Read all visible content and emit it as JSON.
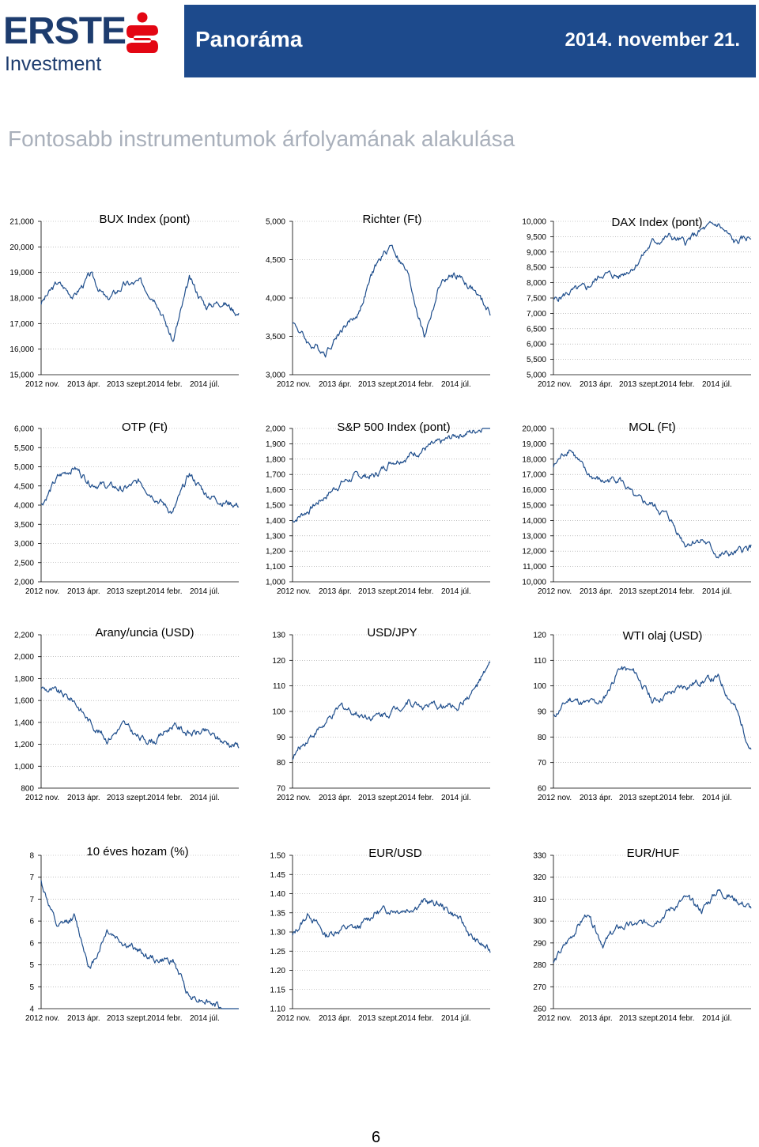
{
  "header": {
    "logo_erste": "ERSTE",
    "logo_investment": "Investment",
    "title": "Panoráma",
    "date": "2014. november 21."
  },
  "section_title": "Fontosabb instrumentumok árfolyamának alakulása",
  "page_number": "6",
  "colors": {
    "line": "#1f4e8c",
    "banner": "#1d4a8c",
    "brand": "#1d3c6e",
    "logo_red": "#e30613",
    "title_gray": "#a9b0bb"
  },
  "x_tick_labels": [
    "2012 nov.",
    "2013 ápr.",
    "2013 szept.",
    "2014 febr.",
    "2014 júl."
  ],
  "chart_data": [
    {
      "id": "bux",
      "type": "line",
      "title": "BUX Index (pont)",
      "yticks": [
        "21,000",
        "20,000",
        "19,000",
        "18,000",
        "17,000",
        "16,000",
        "15,000"
      ],
      "ylim": [
        15000,
        21000
      ],
      "x": [
        "2012-11",
        "2013-01",
        "2013-03",
        "2013-05",
        "2013-07",
        "2013-09",
        "2013-11",
        "2014-01",
        "2014-03",
        "2014-05",
        "2014-07",
        "2014-09",
        "2014-11"
      ],
      "values": [
        17800,
        18600,
        18100,
        18900,
        17900,
        18500,
        18600,
        18000,
        16300,
        18700,
        17700,
        17900,
        17400
      ]
    },
    {
      "id": "richter",
      "type": "line",
      "title": "Richter (Ft)",
      "yticks": [
        "5,000",
        "4,500",
        "4,000",
        "3,500",
        "3,000"
      ],
      "ylim": [
        3000,
        5000
      ],
      "x": [
        "2012-11",
        "2013-01",
        "2013-03",
        "2013-05",
        "2013-07",
        "2013-09",
        "2013-11",
        "2014-01",
        "2014-03",
        "2014-05",
        "2014-07",
        "2014-09",
        "2014-11"
      ],
      "values": [
        3700,
        3400,
        3300,
        3600,
        3800,
        4400,
        4700,
        4300,
        3500,
        4200,
        4300,
        4100,
        3800
      ]
    },
    {
      "id": "dax",
      "type": "line",
      "title": "DAX Index (pont)",
      "yticks": [
        "10,000",
        "9,500",
        "9,000",
        "8,500",
        "8,000",
        "7,500",
        "7,000",
        "6,500",
        "6,000",
        "5,500",
        "5,000"
      ],
      "ylim": [
        5000,
        10000
      ],
      "x": [
        "2012-11",
        "2013-01",
        "2013-03",
        "2013-05",
        "2013-07",
        "2013-09",
        "2013-11",
        "2014-01",
        "2014-03",
        "2014-05",
        "2014-07",
        "2014-09",
        "2014-11"
      ],
      "values": [
        7400,
        7700,
        7800,
        8300,
        8200,
        8600,
        9300,
        9500,
        9300,
        9700,
        9900,
        9300,
        9500
      ]
    },
    {
      "id": "otp",
      "type": "line",
      "title": "OTP (Ft)",
      "yticks": [
        "6,000",
        "5,500",
        "5,000",
        "4,500",
        "4,000",
        "3,500",
        "3,000",
        "2,500",
        "2,000"
      ],
      "ylim": [
        2000,
        6000
      ],
      "x": [
        "2012-11",
        "2013-01",
        "2013-03",
        "2013-05",
        "2013-07",
        "2013-09",
        "2013-11",
        "2014-01",
        "2014-03",
        "2014-05",
        "2014-07",
        "2014-09",
        "2014-11"
      ],
      "values": [
        4000,
        4700,
        5000,
        4600,
        4500,
        4400,
        4600,
        4200,
        3800,
        4800,
        4300,
        4100,
        4000
      ]
    },
    {
      "id": "sp500",
      "type": "line",
      "title": "S&P 500 Index (pont)",
      "yticks": [
        "2,000",
        "1,900",
        "1,800",
        "1,700",
        "1,600",
        "1,500",
        "1,400",
        "1,300",
        "1,200",
        "1,100",
        "1,000"
      ],
      "ylim": [
        1000,
        2000
      ],
      "x": [
        "2012-11",
        "2013-01",
        "2013-03",
        "2013-05",
        "2013-07",
        "2013-09",
        "2013-11",
        "2014-01",
        "2014-03",
        "2014-05",
        "2014-07",
        "2014-09",
        "2014-11"
      ],
      "values": [
        1400,
        1470,
        1560,
        1650,
        1690,
        1690,
        1790,
        1820,
        1870,
        1900,
        1960,
        1980,
        2050
      ]
    },
    {
      "id": "mol",
      "type": "line",
      "title": "MOL (Ft)",
      "yticks": [
        "20,000",
        "19,000",
        "18,000",
        "17,000",
        "16,000",
        "15,000",
        "14,000",
        "13,000",
        "12,000",
        "11,000",
        "10,000"
      ],
      "ylim": [
        10000,
        20000
      ],
      "x": [
        "2012-11",
        "2013-01",
        "2013-03",
        "2013-05",
        "2013-07",
        "2013-09",
        "2013-11",
        "2014-01",
        "2014-03",
        "2014-05",
        "2014-07",
        "2014-09",
        "2014-11"
      ],
      "values": [
        17500,
        18800,
        17000,
        16500,
        16800,
        15300,
        15000,
        14200,
        12500,
        12800,
        11700,
        11800,
        12300
      ]
    },
    {
      "id": "gold",
      "type": "line",
      "title": "Arany/uncia (USD)",
      "yticks": [
        "2,200",
        "2,000",
        "1,800",
        "1,600",
        "1,400",
        "1,200",
        "1,000",
        "800"
      ],
      "ylim": [
        800,
        2200
      ],
      "x": [
        "2012-11",
        "2013-01",
        "2013-03",
        "2013-05",
        "2013-07",
        "2013-09",
        "2013-11",
        "2014-01",
        "2014-03",
        "2014-05",
        "2014-07",
        "2014-09",
        "2014-11"
      ],
      "values": [
        1720,
        1670,
        1600,
        1400,
        1250,
        1380,
        1250,
        1240,
        1380,
        1300,
        1310,
        1230,
        1190
      ]
    },
    {
      "id": "usdjpy",
      "type": "line",
      "title": "USD/JPY",
      "yticks": [
        "130",
        "120",
        "110",
        "100",
        "90",
        "80",
        "70"
      ],
      "ylim": [
        70,
        130
      ],
      "x": [
        "2012-11",
        "2013-01",
        "2013-03",
        "2013-05",
        "2013-07",
        "2013-09",
        "2013-11",
        "2014-01",
        "2014-03",
        "2014-05",
        "2014-07",
        "2014-09",
        "2014-11"
      ],
      "values": [
        82,
        90,
        95,
        102,
        99,
        98,
        100,
        104,
        102,
        102,
        102,
        108,
        118
      ]
    },
    {
      "id": "wti",
      "type": "line",
      "title": "WTI olaj (USD)",
      "yticks": [
        "120",
        "110",
        "100",
        "90",
        "80",
        "70",
        "60"
      ],
      "ylim": [
        60,
        120
      ],
      "x": [
        "2012-11",
        "2013-01",
        "2013-03",
        "2013-05",
        "2013-07",
        "2013-09",
        "2013-11",
        "2014-01",
        "2014-03",
        "2014-05",
        "2014-07",
        "2014-09",
        "2014-11"
      ],
      "values": [
        88,
        95,
        93,
        94,
        107,
        105,
        94,
        97,
        100,
        102,
        103,
        92,
        75
      ]
    },
    {
      "id": "bond10y",
      "type": "line",
      "title": "10 éves hozam (%)",
      "yticks": [
        "8",
        "7",
        "7",
        "6",
        "6",
        "5",
        "5",
        "4"
      ],
      "ylim": [
        4.5,
        8
      ],
      "x": [
        "2012-11",
        "2013-01",
        "2013-03",
        "2013-05",
        "2013-07",
        "2013-09",
        "2013-11",
        "2014-01",
        "2014-03",
        "2014-05",
        "2014-07",
        "2014-09",
        "2014-11"
      ],
      "values": [
        7.4,
        6.3,
        6.6,
        5.4,
        6.3,
        6.0,
        5.8,
        5.6,
        5.6,
        4.8,
        4.7,
        4.5,
        4.1
      ]
    },
    {
      "id": "eurusd",
      "type": "line",
      "title": "EUR/USD",
      "yticks": [
        "1.50",
        "1.45",
        "1.40",
        "1.35",
        "1.30",
        "1.25",
        "1.20",
        "1.15",
        "1.10"
      ],
      "ylim": [
        1.1,
        1.5
      ],
      "x": [
        "2012-11",
        "2013-01",
        "2013-03",
        "2013-05",
        "2013-07",
        "2013-09",
        "2013-11",
        "2014-01",
        "2014-03",
        "2014-05",
        "2014-07",
        "2014-09",
        "2014-11"
      ],
      "values": [
        1.29,
        1.35,
        1.29,
        1.31,
        1.31,
        1.35,
        1.36,
        1.36,
        1.38,
        1.37,
        1.34,
        1.28,
        1.25
      ]
    },
    {
      "id": "eurhuf",
      "type": "line",
      "title": "EUR/HUF",
      "yticks": [
        "330",
        "320",
        "310",
        "300",
        "290",
        "280",
        "270",
        "260"
      ],
      "ylim": [
        260,
        330
      ],
      "x": [
        "2012-11",
        "2013-01",
        "2013-03",
        "2013-05",
        "2013-07",
        "2013-09",
        "2013-11",
        "2014-01",
        "2014-03",
        "2014-05",
        "2014-07",
        "2014-09",
        "2014-11"
      ],
      "values": [
        281,
        292,
        303,
        290,
        297,
        298,
        300,
        305,
        310,
        305,
        314,
        310,
        306
      ]
    }
  ]
}
